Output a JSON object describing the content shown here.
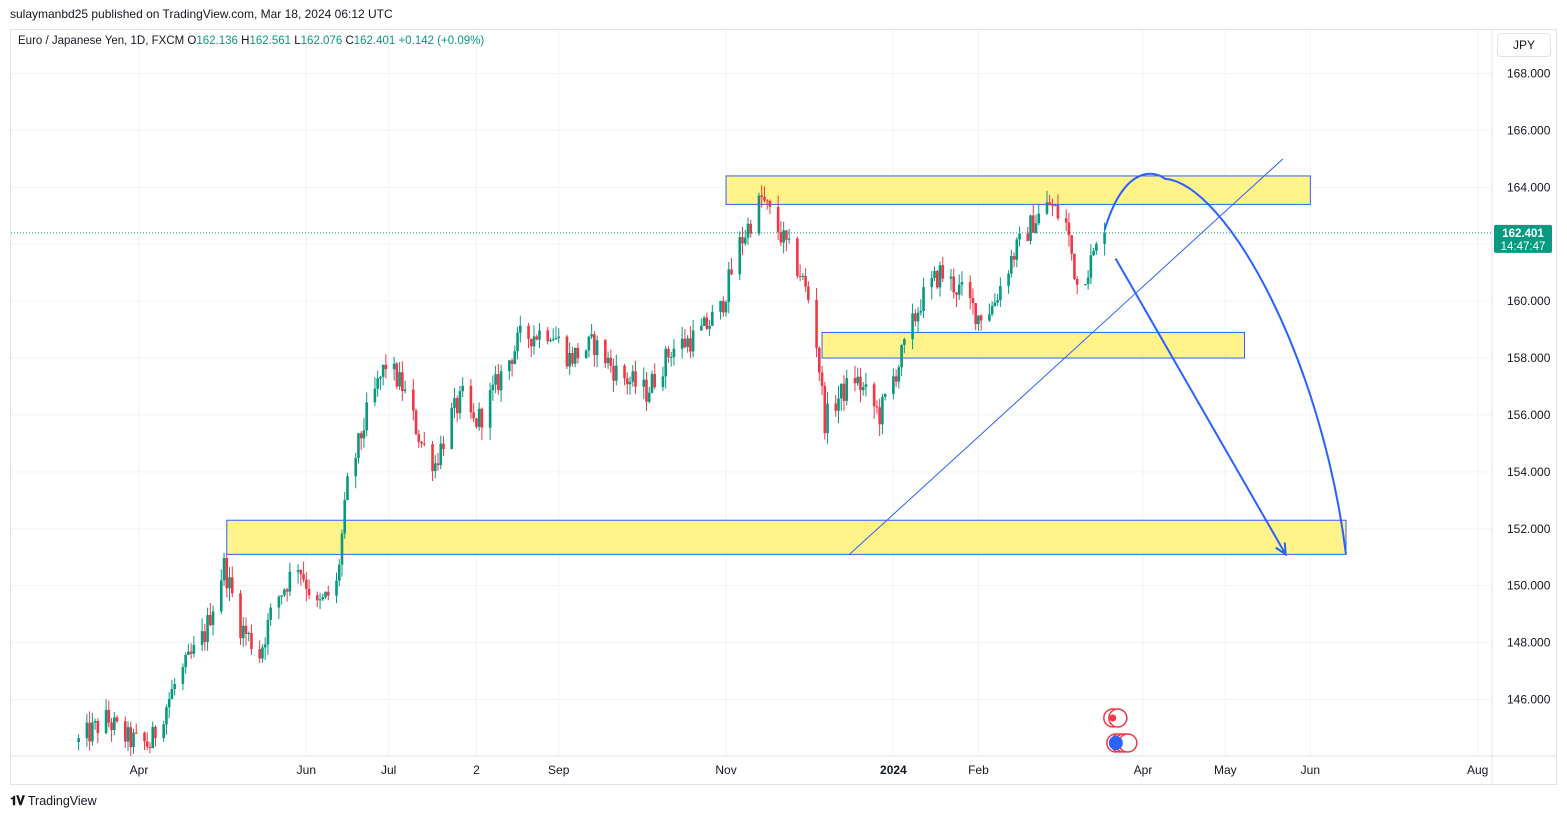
{
  "header": {
    "published_by": "sulaymanbd25 published on TradingView.com, Mar 18, 2024 06:12 UTC"
  },
  "legend": {
    "symbol": "Euro / Japanese Yen, 1D, FXCM",
    "open_label": "O",
    "open": "162.136",
    "high_label": "H",
    "high": "162.561",
    "low_label": "L",
    "low": "162.076",
    "close_label": "C",
    "close": "162.401",
    "change": "+0.142 (+0.09%)"
  },
  "currency": "JPY",
  "footer": {
    "brand": "TradingView",
    "icon": "tradingview-logo-icon"
  },
  "colors": {
    "up": "#089981",
    "down": "#f23645",
    "zone_fill": "#fff176",
    "zone_border": "#2962ff",
    "drawing": "#2962ff",
    "price_tag": "#089981",
    "grid": "#f0f3fa"
  },
  "chart_data": {
    "type": "candlestick",
    "y_axis": {
      "ticks": [
        146,
        148,
        150,
        152,
        154,
        156,
        158,
        160,
        162,
        164,
        166,
        168
      ],
      "ylim": [
        144.0,
        169.5
      ],
      "side": "right",
      "decimals": 3
    },
    "x_axis": {
      "labels": [
        {
          "text": "Apr",
          "date": "2023-04-01",
          "bold": false
        },
        {
          "text": "Jun",
          "date": "2023-06-01",
          "bold": false
        },
        {
          "text": "Jul",
          "date": "2023-07-01",
          "bold": false
        },
        {
          "text": "2",
          "date": "2023-08-02",
          "bold": false
        },
        {
          "text": "Sep",
          "date": "2023-09-01",
          "bold": false
        },
        {
          "text": "Nov",
          "date": "2023-11-01",
          "bold": false
        },
        {
          "text": "2024",
          "date": "2024-01-01",
          "bold": true
        },
        {
          "text": "Feb",
          "date": "2024-02-01",
          "bold": false
        },
        {
          "text": "Apr",
          "date": "2024-04-01",
          "bold": false
        },
        {
          "text": "May",
          "date": "2024-05-01",
          "bold": false
        },
        {
          "text": "Jun",
          "date": "2024-06-01",
          "bold": false
        },
        {
          "text": "Aug",
          "date": "2024-08-01",
          "bold": false
        }
      ]
    },
    "current_price": {
      "value": 162.401,
      "label": "162.401",
      "countdown": "14:47:47"
    },
    "price_path": [
      {
        "date": "2023-03-10",
        "price": 144.5
      },
      {
        "date": "2023-03-20",
        "price": 145.3
      },
      {
        "date": "2023-03-28",
        "price": 144.6
      },
      {
        "date": "2023-04-05",
        "price": 144.4
      },
      {
        "date": "2023-04-14",
        "price": 146.5
      },
      {
        "date": "2023-04-25",
        "price": 148.3
      },
      {
        "date": "2023-05-02",
        "price": 150.7
      },
      {
        "date": "2023-05-08",
        "price": 148.6
      },
      {
        "date": "2023-05-15",
        "price": 147.6
      },
      {
        "date": "2023-05-20",
        "price": 149.3
      },
      {
        "date": "2023-05-29",
        "price": 150.8
      },
      {
        "date": "2023-06-05",
        "price": 149.2
      },
      {
        "date": "2023-06-12",
        "price": 150.0
      },
      {
        "date": "2023-06-16",
        "price": 153.5
      },
      {
        "date": "2023-06-23",
        "price": 156.0
      },
      {
        "date": "2023-06-30",
        "price": 157.8
      },
      {
        "date": "2023-07-06",
        "price": 157.0
      },
      {
        "date": "2023-07-13",
        "price": 155.0
      },
      {
        "date": "2023-07-18",
        "price": 154.3
      },
      {
        "date": "2023-07-24",
        "price": 156.0
      },
      {
        "date": "2023-07-28",
        "price": 156.6
      },
      {
        "date": "2023-08-01",
        "price": 155.7
      },
      {
        "date": "2023-08-04",
        "price": 156.0
      },
      {
        "date": "2023-08-10",
        "price": 157.2
      },
      {
        "date": "2023-08-18",
        "price": 158.7
      },
      {
        "date": "2023-08-29",
        "price": 159.0
      },
      {
        "date": "2023-09-05",
        "price": 158.0
      },
      {
        "date": "2023-09-14",
        "price": 158.5
      },
      {
        "date": "2023-09-22",
        "price": 157.5
      },
      {
        "date": "2023-10-03",
        "price": 156.8
      },
      {
        "date": "2023-10-12",
        "price": 158.3
      },
      {
        "date": "2023-10-22",
        "price": 158.8
      },
      {
        "date": "2023-10-30",
        "price": 159.7
      },
      {
        "date": "2023-11-06",
        "price": 162.0
      },
      {
        "date": "2023-11-14",
        "price": 163.6
      },
      {
        "date": "2023-11-20",
        "price": 162.5
      },
      {
        "date": "2023-11-28",
        "price": 161.0
      },
      {
        "date": "2023-12-03",
        "price": 159.5
      },
      {
        "date": "2023-12-07",
        "price": 155.8
      },
      {
        "date": "2023-12-12",
        "price": 156.6
      },
      {
        "date": "2023-12-18",
        "price": 157.3
      },
      {
        "date": "2023-12-27",
        "price": 156.0
      },
      {
        "date": "2024-01-03",
        "price": 157.8
      },
      {
        "date": "2024-01-11",
        "price": 160.0
      },
      {
        "date": "2024-01-18",
        "price": 161.0
      },
      {
        "date": "2024-01-26",
        "price": 160.3
      },
      {
        "date": "2024-02-01",
        "price": 159.5
      },
      {
        "date": "2024-02-06",
        "price": 159.8
      },
      {
        "date": "2024-02-13",
        "price": 161.5
      },
      {
        "date": "2024-02-21",
        "price": 162.8
      },
      {
        "date": "2024-02-27",
        "price": 163.4
      },
      {
        "date": "2024-03-04",
        "price": 162.7
      },
      {
        "date": "2024-03-08",
        "price": 160.6
      },
      {
        "date": "2024-03-12",
        "price": 161.2
      },
      {
        "date": "2024-03-18",
        "price": 162.4
      }
    ],
    "zones": [
      {
        "x0": "2023-11-01",
        "x1": "2024-06-01",
        "y0": 163.4,
        "y1": 164.4
      },
      {
        "x0": "2023-12-06",
        "x1": "2024-05-08",
        "y0": 158.0,
        "y1": 158.9
      },
      {
        "x0": "2023-05-03",
        "x1": "2024-06-14",
        "y0": 151.1,
        "y1": 152.3
      }
    ],
    "trendline": {
      "p0": {
        "date": "2023-12-16",
        "price": 151.1
      },
      "p1": {
        "date": "2024-05-22",
        "price": 165.0
      }
    },
    "projection_arrow": {
      "start": {
        "date": "2024-03-22",
        "price": 161.5
      },
      "end": {
        "date": "2024-05-23",
        "price": 151.1
      }
    },
    "projection_arc": {
      "start": {
        "date": "2024-03-18",
        "price": 162.5
      },
      "peak": {
        "date": "2024-04-09",
        "price": 164.3
      },
      "end": {
        "date": "2024-06-14",
        "price": 151.1
      }
    }
  }
}
